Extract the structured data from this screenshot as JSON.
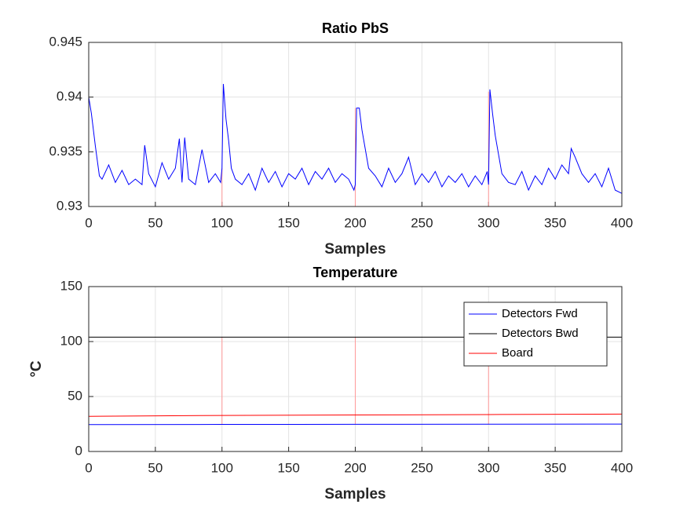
{
  "chart_data": [
    {
      "type": "line",
      "title": "Ratio PbS",
      "x_label": "Samples",
      "xlim": [
        0,
        400
      ],
      "xticks": [
        0,
        50,
        100,
        150,
        200,
        250,
        300,
        350,
        400
      ],
      "ylim": [
        0.93,
        0.945
      ],
      "yticks": [
        0.93,
        0.935,
        0.94,
        0.945
      ],
      "grid": true,
      "series": [
        {
          "color": "#0000ff",
          "x": [
            0,
            2,
            5,
            8,
            10,
            15,
            20,
            25,
            30,
            35,
            40,
            42,
            45,
            50,
            55,
            60,
            65,
            68,
            70,
            72,
            75,
            80,
            85,
            90,
            95,
            99,
            100,
            101,
            103,
            105,
            107,
            110,
            115,
            120,
            125,
            130,
            135,
            140,
            145,
            150,
            155,
            160,
            165,
            170,
            175,
            180,
            185,
            190,
            195,
            199,
            200,
            201,
            203,
            205,
            210,
            215,
            220,
            225,
            230,
            235,
            240,
            245,
            250,
            255,
            260,
            265,
            270,
            275,
            280,
            285,
            290,
            295,
            299,
            300,
            301,
            303,
            305,
            310,
            315,
            320,
            325,
            330,
            335,
            340,
            345,
            350,
            355,
            360,
            362,
            365,
            370,
            375,
            380,
            385,
            390,
            395,
            400
          ],
          "values": [
            0.94,
            0.9385,
            0.9355,
            0.9328,
            0.9325,
            0.9338,
            0.9322,
            0.9333,
            0.932,
            0.9325,
            0.932,
            0.9356,
            0.933,
            0.9318,
            0.934,
            0.9325,
            0.9335,
            0.9362,
            0.9322,
            0.9363,
            0.9325,
            0.932,
            0.9352,
            0.9322,
            0.933,
            0.9322,
            0.9335,
            0.9412,
            0.938,
            0.936,
            0.9335,
            0.9325,
            0.932,
            0.933,
            0.9315,
            0.9335,
            0.9322,
            0.9332,
            0.9318,
            0.933,
            0.9325,
            0.9335,
            0.932,
            0.9332,
            0.9325,
            0.9335,
            0.9322,
            0.933,
            0.9325,
            0.9315,
            0.932,
            0.939,
            0.939,
            0.937,
            0.9335,
            0.9328,
            0.9318,
            0.9335,
            0.9322,
            0.933,
            0.9345,
            0.932,
            0.933,
            0.9322,
            0.9332,
            0.9318,
            0.9328,
            0.9322,
            0.933,
            0.9318,
            0.9328,
            0.932,
            0.9332,
            0.932,
            0.9407,
            0.9385,
            0.9365,
            0.933,
            0.9322,
            0.932,
            0.9332,
            0.9315,
            0.9328,
            0.932,
            0.9335,
            0.9325,
            0.9338,
            0.933,
            0.9353,
            0.9345,
            0.933,
            0.9322,
            0.933,
            0.9318,
            0.9335,
            0.9315,
            0.9312
          ]
        }
      ],
      "vlines": {
        "color": "#ff9999",
        "x": [
          100,
          200,
          300,
          400
        ],
        "ymin": [
          0.93,
          0.93,
          0.93,
          0.93
        ],
        "ymax": [
          0.9335,
          0.939,
          0.9405,
          0.94
        ]
      }
    },
    {
      "type": "line",
      "title": "Temperature",
      "x_label": "Samples",
      "y_label": "°C",
      "xlim": [
        0,
        400
      ],
      "xticks": [
        0,
        50,
        100,
        150,
        200,
        250,
        300,
        350,
        400
      ],
      "ylim": [
        0,
        150
      ],
      "yticks": [
        0,
        50,
        100,
        150
      ],
      "grid": true,
      "legend": "northeast",
      "series": [
        {
          "name": "Detectors Fwd",
          "color": "#0000ff",
          "x": [
            0,
            100,
            200,
            300,
            400
          ],
          "values": [
            24.5,
            24.6,
            24.7,
            24.8,
            24.9
          ]
        },
        {
          "name": "Detectors Bwd",
          "color": "#000000",
          "x": [
            0,
            100,
            200,
            300,
            400
          ],
          "values": [
            104,
            104,
            104,
            104,
            104
          ]
        },
        {
          "name": "Board",
          "color": "#ff0000",
          "x": [
            0,
            100,
            200,
            300,
            400
          ],
          "values": [
            32,
            32.8,
            33.2,
            33.6,
            34
          ]
        }
      ],
      "vlines": {
        "color": "#ff9999",
        "x": [
          100,
          200,
          300,
          400
        ],
        "ymin": [
          24.6,
          24.7,
          24.8,
          24.9
        ],
        "ymax": [
          104,
          104,
          104,
          104
        ]
      }
    }
  ]
}
